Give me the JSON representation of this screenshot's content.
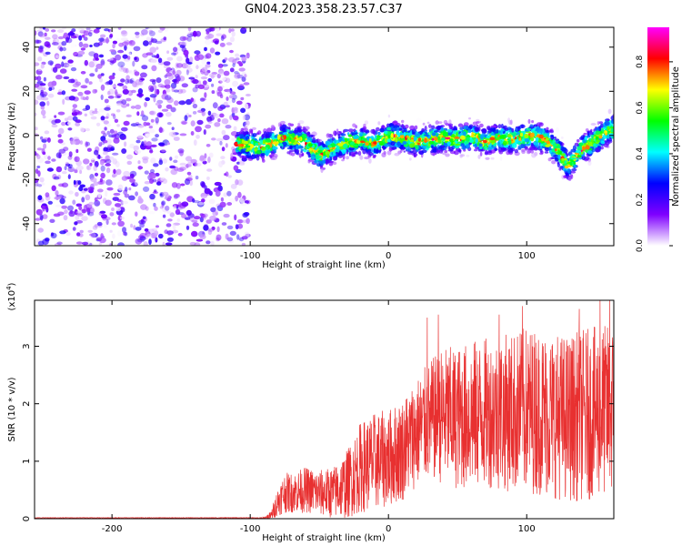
{
  "title": "GN04.2023.358.23.57.C37",
  "chart_data": [
    {
      "type": "heatmap",
      "panel": "spectrogram",
      "xlabel": "Height of straight line (km)",
      "ylabel": "Frequency (Hz)",
      "xlim": [
        -256,
        163
      ],
      "ylim": [
        -50,
        49
      ],
      "x_ticks": [
        -200,
        -100,
        0,
        100
      ],
      "y_ticks": [
        -40,
        -20,
        0,
        20,
        40
      ],
      "colorbar": {
        "label": "Normalized spectral amplitude",
        "range": [
          0.0,
          0.95
        ],
        "ticks": [
          0.0,
          0.2,
          0.4,
          0.6,
          0.8
        ],
        "colormap": [
          "#ff00ff",
          "#ff0000",
          "#ffff00",
          "#00ff00",
          "#00ffff",
          "#0000ff",
          "#7f00ff",
          "#ffffff"
        ]
      },
      "regions": [
        {
          "x_range": [
            -256,
            -101
          ],
          "y_range": [
            -50,
            49
          ],
          "description": "broadband noise",
          "amplitude": 0.15
        },
        {
          "x_range": [
            -110,
            163
          ],
          "center_freq_hz": -2,
          "bandwidth_hz": 10,
          "peak_amplitude": 0.85,
          "description": "narrow band near 0 Hz"
        }
      ],
      "band_center_profile": {
        "x": [
          -110,
          -90,
          -75,
          -60,
          -50,
          -40,
          -30,
          -20,
          -10,
          0,
          10,
          20,
          30,
          40,
          50,
          60,
          70,
          80,
          90,
          100,
          110,
          120,
          130,
          140,
          150,
          160
        ],
        "freq": [
          -4,
          -5,
          -1,
          -3,
          -9,
          -6,
          -3,
          -2,
          -4,
          0,
          -1,
          -3,
          -2,
          -1,
          -2,
          0,
          -3,
          -1,
          -2,
          0,
          -1,
          -5,
          -14,
          -6,
          -2,
          3
        ]
      }
    },
    {
      "type": "line",
      "panel": "snr",
      "xlabel": "Height of straight line (km)",
      "ylabel": "SNR (10 * v/v)",
      "y_multiplier": "(x10^4)",
      "y_multiplier_base": "(x10",
      "y_multiplier_exp": "4",
      "y_multiplier_close": ")",
      "xlim": [
        -256,
        163
      ],
      "ylim": [
        0,
        3.8
      ],
      "x_ticks": [
        -200,
        -100,
        0,
        100
      ],
      "y_ticks": [
        0,
        1,
        2,
        3
      ],
      "color": "#e83030",
      "series": [
        {
          "x": [
            -256,
            -200,
            -150,
            -100,
            -90,
            -85,
            -80,
            -75,
            -70,
            -60,
            -50,
            -40,
            -30,
            -20,
            -10,
            0,
            10,
            20,
            30,
            40,
            50,
            60,
            70,
            80,
            90,
            100,
            110,
            120,
            130,
            140,
            150,
            160
          ],
          "mean": [
            0.0,
            0.0,
            0.0,
            0.0,
            0.01,
            0.05,
            0.3,
            0.45,
            0.45,
            0.5,
            0.45,
            0.45,
            0.6,
            0.9,
            1.0,
            1.05,
            1.2,
            1.5,
            1.7,
            1.8,
            1.75,
            1.8,
            1.85,
            1.85,
            1.85,
            1.9,
            1.85,
            1.8,
            1.75,
            1.8,
            1.85,
            1.9
          ],
          "spread": [
            0.0,
            0.0,
            0.0,
            0.0,
            0.02,
            0.08,
            0.25,
            0.35,
            0.35,
            0.4,
            0.4,
            0.45,
            0.6,
            0.8,
            0.85,
            0.85,
            0.9,
            0.95,
            1.05,
            1.2,
            1.25,
            1.3,
            1.3,
            1.35,
            1.4,
            1.45,
            1.45,
            1.45,
            1.45,
            1.5,
            1.5,
            1.5
          ],
          "peaks": [
            {
              "x": 28,
              "y": 3.5
            },
            {
              "x": 36,
              "y": 3.55
            },
            {
              "x": 80,
              "y": 3.55
            },
            {
              "x": 97,
              "y": 3.7
            },
            {
              "x": 138,
              "y": 3.65
            },
            {
              "x": 153,
              "y": 3.8
            },
            {
              "x": 160,
              "y": 3.8
            }
          ]
        }
      ]
    }
  ]
}
